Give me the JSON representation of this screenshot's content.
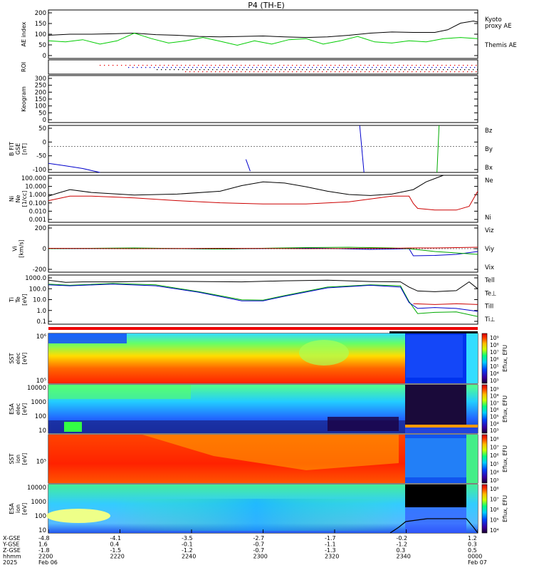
{
  "chart_data": {
    "type": "line",
    "title": "P4 (TH-E)",
    "panels": [
      {
        "id": "ae",
        "ylabel": "AE index",
        "yticks": [
          "200",
          "150",
          "100",
          "50",
          "0"
        ],
        "ylim": [
          -20,
          200
        ],
        "legend": [
          {
            "text": "Kyoto",
            "color": "#00cc00"
          },
          {
            "text": "proxy AE",
            "color": "#00cc00"
          },
          {
            "text": "Themis AE",
            "color": "#000000"
          }
        ],
        "series": [
          {
            "name": "Themis AE",
            "color": "#000000",
            "x": [
              0,
              0.05,
              0.1,
              0.15,
              0.2,
              0.25,
              0.3,
              0.35,
              0.4,
              0.45,
              0.5,
              0.55,
              0.6,
              0.65,
              0.7,
              0.75,
              0.8,
              0.85,
              0.9,
              0.93,
              0.96,
              0.99,
              1.0
            ],
            "y": [
              85,
              90,
              90,
              92,
              95,
              88,
              85,
              80,
              78,
              80,
              82,
              78,
              75,
              78,
              85,
              95,
              100,
              98,
              98,
              110,
              140,
              150,
              145
            ]
          },
          {
            "name": "Kyoto proxy AE",
            "color": "#00cc00",
            "x": [
              0,
              0.04,
              0.08,
              0.12,
              0.16,
              0.2,
              0.24,
              0.28,
              0.32,
              0.36,
              0.4,
              0.44,
              0.48,
              0.52,
              0.56,
              0.6,
              0.64,
              0.68,
              0.72,
              0.76,
              0.8,
              0.84,
              0.88,
              0.92,
              0.96,
              1.0
            ],
            "y": [
              60,
              55,
              65,
              45,
              60,
              95,
              70,
              50,
              60,
              75,
              58,
              40,
              60,
              45,
              65,
              70,
              45,
              60,
              80,
              55,
              50,
              60,
              55,
              70,
              75,
              70
            ]
          }
        ]
      },
      {
        "id": "roi",
        "ylabel": "ROI",
        "yticks": []
      },
      {
        "id": "keogram",
        "ylabel": "Keogram",
        "yticks": [
          "300",
          "250",
          "200",
          "150",
          "100",
          "50",
          "0"
        ],
        "ylim": [
          0,
          300
        ]
      },
      {
        "id": "bfit",
        "ylabel": "B FIT\nGSE\n[nT]",
        "yticks": [
          "50",
          "0",
          "-50",
          "-100"
        ],
        "ylim": [
          -100,
          80
        ],
        "legend": [
          {
            "text": "Bz",
            "color": "#cc0000"
          },
          {
            "text": "By",
            "color": "#00aa00"
          },
          {
            "text": "Bx",
            "color": "#0000cc"
          }
        ],
        "series": [
          {
            "name": "Bx",
            "color": "#0000cc",
            "x": [
              0,
              0.04,
              0.08,
              0.12
            ],
            "y": [
              -65,
              -75,
              -85,
              -100
            ]
          },
          {
            "name": "Bx",
            "color": "#0000cc",
            "x": [
              0.46,
              0.47
            ],
            "y": [
              -50,
              -95
            ]
          },
          {
            "name": "Bx",
            "color": "#0000cc",
            "x": [
              0.725,
              0.735
            ],
            "y": [
              95,
              -100
            ]
          },
          {
            "name": "By",
            "color": "#00aa00",
            "x": [
              0.905,
              0.91
            ],
            "y": [
              -100,
              90
            ]
          }
        ]
      },
      {
        "id": "ni",
        "ylabel": "Ni\nNe\n[1/cc]",
        "yticks": [
          "100.000",
          "10.000",
          "1.000",
          "0.100",
          "0.010",
          "0.001"
        ],
        "ylog": true,
        "ylim": [
          0.001,
          100
        ],
        "legend": [
          {
            "text": "Ne",
            "color": "#cc0000"
          },
          {
            "text": "Ni",
            "color": "#000000"
          }
        ],
        "series": [
          {
            "name": "Ni",
            "color": "#000000",
            "x": [
              0,
              0.02,
              0.05,
              0.1,
              0.2,
              0.3,
              0.4,
              0.45,
              0.5,
              0.55,
              0.6,
              0.65,
              0.7,
              0.75,
              0.8,
              0.85,
              0.88,
              0.92
            ],
            "y": [
              0.6,
              1.2,
              3,
              1.5,
              0.8,
              1,
              2,
              8,
              20,
              15,
              6,
              2,
              0.9,
              0.7,
              1,
              3,
              20,
              100
            ]
          },
          {
            "name": "Ne",
            "color": "#cc0000",
            "x": [
              0,
              0.05,
              0.1,
              0.2,
              0.3,
              0.4,
              0.5,
              0.6,
              0.7,
              0.75,
              0.8,
              0.84,
              0.85,
              0.86,
              0.9,
              0.95,
              0.98,
              1.0
            ],
            "y": [
              0.2,
              0.6,
              0.6,
              0.4,
              0.2,
              0.12,
              0.09,
              0.09,
              0.15,
              0.3,
              0.6,
              0.6,
              0.1,
              0.03,
              0.02,
              0.02,
              0.05,
              2
            ]
          }
        ]
      },
      {
        "id": "v",
        "ylabel": "Vi\n[km/s]",
        "yticks": [
          "200",
          "0",
          "-200"
        ],
        "ylim": [
          -330,
          330
        ],
        "legend": [
          {
            "text": "Viz",
            "color": "#cc0000"
          },
          {
            "text": "Viy",
            "color": "#00aa00"
          },
          {
            "text": "Vix",
            "color": "#0000cc"
          }
        ],
        "series": [
          {
            "name": "Vix",
            "color": "#0000cc",
            "x": [
              0,
              0.2,
              0.4,
              0.6,
              0.75,
              0.8,
              0.84,
              0.85,
              0.9,
              0.95,
              1.0
            ],
            "y": [
              0,
              5,
              -5,
              10,
              -10,
              -5,
              0,
              -100,
              -95,
              -80,
              -40
            ]
          },
          {
            "name": "Viy",
            "color": "#00aa00",
            "x": [
              0,
              0.2,
              0.4,
              0.6,
              0.7,
              0.75,
              0.8,
              0.84,
              0.9,
              0.95,
              1.0
            ],
            "y": [
              0,
              10,
              -5,
              15,
              20,
              15,
              10,
              0,
              -40,
              -60,
              -80
            ]
          },
          {
            "name": "Viz",
            "color": "#cc0000",
            "x": [
              0,
              0.2,
              0.4,
              0.6,
              0.8,
              0.85,
              0.9,
              0.95,
              1.0
            ],
            "y": [
              5,
              0,
              5,
              0,
              5,
              10,
              10,
              15,
              20
            ]
          }
        ]
      },
      {
        "id": "ti",
        "ylabel": "Ti\nTe\n[eV]",
        "yticks": [
          "1000.0",
          "100.0",
          "10.0",
          "1.0",
          "0.1"
        ],
        "ylog": true,
        "ylim": [
          0.05,
          5000
        ],
        "legend": [
          {
            "text": "Tell",
            "color": "#000000"
          },
          {
            "text": "Te⊥",
            "color": "#cc0000"
          },
          {
            "text": "TiII",
            "color": "#00aa00"
          },
          {
            "text": "Ti⊥",
            "color": "#0000cc"
          }
        ],
        "series": [
          {
            "name": "Tell",
            "color": "#000000",
            "x": [
              0,
              0.04,
              0.08,
              0.15,
              0.25,
              0.35,
              0.45,
              0.55,
              0.65,
              0.75,
              0.82,
              0.84,
              0.86,
              0.9,
              0.95,
              0.98,
              1.0
            ],
            "y": [
              1500,
              900,
              1000,
              1000,
              1200,
              1100,
              1000,
              1300,
              1500,
              1100,
              1000,
              300,
              120,
              100,
              130,
              1000,
              200
            ]
          },
          {
            "name": "Te⊥",
            "color": "#cc0000",
            "x": [
              0.85,
              0.9,
              0.95,
              1.0
            ],
            "y": [
              6,
              5,
              6,
              5
            ]
          },
          {
            "name": "TiII",
            "color": "#00aa00",
            "x": [
              0,
              0.05,
              0.15,
              0.25,
              0.35,
              0.45,
              0.5,
              0.55,
              0.65,
              0.75,
              0.82,
              0.84,
              0.86,
              0.9,
              0.95,
              1.0
            ],
            "y": [
              600,
              450,
              700,
              500,
              100,
              15,
              14,
              40,
              300,
              500,
              400,
              10,
              0.6,
              0.8,
              0.9,
              0.3
            ]
          },
          {
            "name": "Ti⊥",
            "color": "#0000cc",
            "x": [
              0,
              0.05,
              0.15,
              0.25,
              0.35,
              0.45,
              0.5,
              0.55,
              0.65,
              0.75,
              0.82,
              0.84,
              0.86,
              0.9,
              0.95,
              1.0
            ],
            "y": [
              500,
              400,
              600,
              400,
              90,
              12,
              12,
              35,
              250,
              450,
              300,
              8,
              2,
              2.5,
              2,
              1
            ]
          }
        ]
      },
      {
        "id": "sst_e",
        "ylabel": "SST\nelec\n[eV]",
        "yticks": [
          "10⁶",
          "10⁵"
        ],
        "colorbar": {
          "label": "Eflux, EFU",
          "ticks": [
            "10⁹",
            "10⁸",
            "10⁷",
            "10⁶",
            "10⁵",
            "10⁴",
            "10³"
          ]
        }
      },
      {
        "id": "esa_e",
        "ylabel": "ESA\nelec\n[eV]",
        "yticks": [
          "10000",
          "1000",
          "100",
          "10"
        ],
        "colorbar": {
          "label": "Eflux, EFU",
          "ticks": [
            "10⁹",
            "10⁸",
            "10⁷",
            "10⁶",
            "10⁵",
            "10⁴",
            "10³"
          ]
        }
      },
      {
        "id": "sst_i",
        "ylabel": "SST\nion\n[eV]",
        "yticks": [
          "10⁵"
        ],
        "colorbar": {
          "label": "Eflux, EFU",
          "ticks": [
            "10⁸",
            "10⁷",
            "10⁶",
            "10⁵",
            "10⁴",
            "10³"
          ]
        }
      },
      {
        "id": "esa_i",
        "ylabel": "ESA\nion\n[eV]",
        "yticks": [
          "10000",
          "1000",
          "100",
          "10"
        ],
        "colorbar": {
          "label": "Eflux, EFU",
          "ticks": [
            "10⁸",
            "10⁷",
            "10⁶",
            "10⁵",
            "10⁴"
          ]
        }
      }
    ],
    "xaxis": {
      "row_labels": [
        "X-GSE",
        "Y-GSE",
        "Z-GSE",
        "hhmm",
        "2025"
      ],
      "columns": [
        [
          "-4.8",
          "1.6",
          "-1.8",
          "2200",
          "Feb 06"
        ],
        [
          "-4.1",
          "0.4",
          "-1.5",
          "2220",
          ""
        ],
        [
          "-3.5",
          "-0.1",
          "-1.2",
          "2240",
          ""
        ],
        [
          "-2.7",
          "-0.7",
          "-0.7",
          "2300",
          ""
        ],
        [
          "-1.7",
          "-1.1",
          "-1.3",
          "2320",
          ""
        ],
        [
          "-0.2",
          "-1.2",
          "0.3",
          "2340",
          ""
        ],
        [
          "1.2",
          "0.3",
          "0.5",
          "0000",
          "Feb 07"
        ]
      ]
    }
  }
}
